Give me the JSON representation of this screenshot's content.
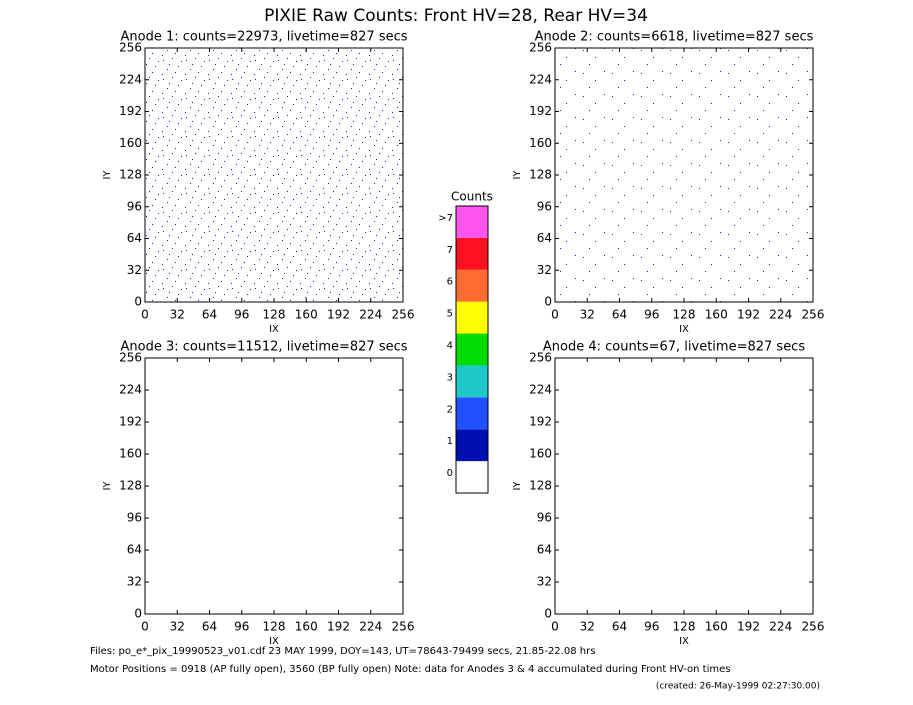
{
  "title": "PIXIE Raw Counts:  Front HV=28, Rear HV=34",
  "chart_data": [
    {
      "type": "heatmap",
      "title": "Anode 1: counts=22973, livetime=827 secs",
      "x_label": "IX",
      "y_label": "IY",
      "xlim": [
        0,
        256
      ],
      "ylim": [
        0,
        256
      ],
      "xticks": [
        0,
        32,
        64,
        96,
        128,
        160,
        192,
        224,
        256
      ],
      "yticks": [
        0,
        32,
        64,
        96,
        128,
        160,
        192,
        224,
        256
      ]
    },
    {
      "type": "heatmap",
      "title": "Anode 2: counts=6618, livetime=827 secs",
      "x_label": "IX",
      "y_label": "IY",
      "xlim": [
        0,
        256
      ],
      "ylim": [
        0,
        256
      ],
      "xticks": [
        0,
        32,
        64,
        96,
        128,
        160,
        192,
        224,
        256
      ],
      "yticks": [
        0,
        32,
        64,
        96,
        128,
        160,
        192,
        224,
        256
      ]
    },
    {
      "type": "heatmap",
      "title": "Anode 3: counts=11512, livetime=827 secs",
      "x_label": "IX",
      "y_label": "IY",
      "xlim": [
        0,
        256
      ],
      "ylim": [
        0,
        256
      ],
      "xticks": [
        0,
        32,
        64,
        96,
        128,
        160,
        192,
        224,
        256
      ],
      "yticks": [
        0,
        32,
        64,
        96,
        128,
        160,
        192,
        224,
        256
      ]
    },
    {
      "type": "heatmap",
      "title": "Anode 4: counts=67, livetime=827 secs",
      "x_label": "IX",
      "y_label": "IY",
      "xlim": [
        0,
        256
      ],
      "ylim": [
        0,
        256
      ],
      "xticks": [
        0,
        32,
        64,
        96,
        128,
        160,
        192,
        224,
        256
      ],
      "yticks": [
        0,
        32,
        64,
        96,
        128,
        160,
        192,
        224,
        256
      ]
    },
    {
      "type": "colorbar",
      "title": "Counts",
      "categories": [
        "0",
        "1",
        "2",
        "3",
        "4",
        "5",
        "6",
        "7",
        ">7"
      ],
      "colors": [
        "#ffffff",
        "#0010b0",
        "#2050ff",
        "#20c8c8",
        "#00dd00",
        "#ffff00",
        "#ff6a30",
        "#ff1020",
        "#ff55ee"
      ]
    }
  ],
  "footer": [
    "Files: po_e*_pix_19990523_v01.cdf   23 MAY 1999, DOY=143, UT=78643-79499 secs, 21.85-22.08 hrs",
    "Motor Positions = 0918 (AP fully open), 3560 (BP fully open)   Note: data for Anodes 3 & 4 accumulated during Front HV-on times",
    "(created: 26-May-1999 02:27:30.00)"
  ]
}
